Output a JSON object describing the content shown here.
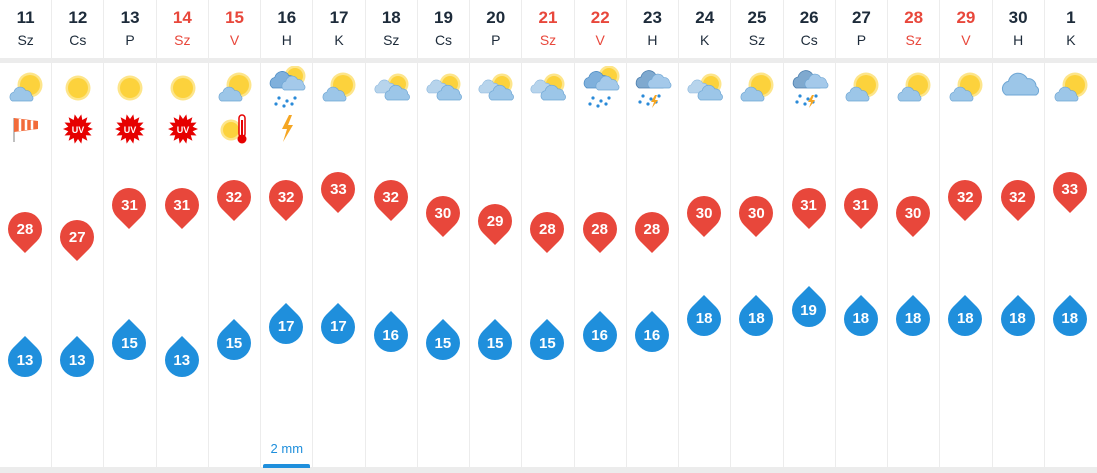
{
  "colors": {
    "max": "#e8473b",
    "min": "#1f8fdc",
    "weekend": "#e8473b",
    "text": "#1d2b3a"
  },
  "days": [
    {
      "date": "11",
      "dow": "Sz",
      "weekend": false,
      "icon": "partly-sunny",
      "extra": "windsock-icon",
      "max": 28,
      "min": 13
    },
    {
      "date": "12",
      "dow": "Cs",
      "weekend": false,
      "icon": "sunny",
      "extra": "uv-icon",
      "extra_text": "UV",
      "max": 27,
      "min": 13
    },
    {
      "date": "13",
      "dow": "P",
      "weekend": false,
      "icon": "sunny",
      "extra": "uv-icon",
      "extra_text": "UV",
      "max": 31,
      "min": 15
    },
    {
      "date": "14",
      "dow": "Sz",
      "weekend": true,
      "icon": "sunny",
      "extra": "uv-icon",
      "extra_text": "UV",
      "max": 31,
      "min": 13
    },
    {
      "date": "15",
      "dow": "V",
      "weekend": true,
      "icon": "partly-sunny",
      "extra": "heat-icon",
      "max": 32,
      "min": 15
    },
    {
      "date": "16",
      "dow": "H",
      "weekend": false,
      "icon": "rain-sun",
      "extra": "lightning-icon",
      "max": 32,
      "min": 17,
      "precip": "2 mm"
    },
    {
      "date": "17",
      "dow": "K",
      "weekend": false,
      "icon": "partly-sunny",
      "max": 33,
      "min": 17
    },
    {
      "date": "18",
      "dow": "Sz",
      "weekend": false,
      "icon": "cloudy-sun",
      "max": 32,
      "min": 16
    },
    {
      "date": "19",
      "dow": "Cs",
      "weekend": false,
      "icon": "cloudy-sun",
      "max": 30,
      "min": 15
    },
    {
      "date": "20",
      "dow": "P",
      "weekend": false,
      "icon": "cloudy-sun",
      "max": 29,
      "min": 15
    },
    {
      "date": "21",
      "dow": "Sz",
      "weekend": true,
      "icon": "cloudy-sun",
      "max": 28,
      "min": 15
    },
    {
      "date": "22",
      "dow": "V",
      "weekend": true,
      "icon": "rain-sun",
      "max": 28,
      "min": 16
    },
    {
      "date": "23",
      "dow": "H",
      "weekend": false,
      "icon": "thunder-rain",
      "max": 28,
      "min": 16
    },
    {
      "date": "24",
      "dow": "K",
      "weekend": false,
      "icon": "cloudy-sun",
      "max": 30,
      "min": 18
    },
    {
      "date": "25",
      "dow": "Sz",
      "weekend": false,
      "icon": "partly-sunny",
      "max": 30,
      "min": 18
    },
    {
      "date": "26",
      "dow": "Cs",
      "weekend": false,
      "icon": "thunder-rain",
      "max": 31,
      "min": 19
    },
    {
      "date": "27",
      "dow": "P",
      "weekend": false,
      "icon": "partly-sunny",
      "max": 31,
      "min": 18
    },
    {
      "date": "28",
      "dow": "Sz",
      "weekend": true,
      "icon": "partly-sunny",
      "max": 30,
      "min": 18
    },
    {
      "date": "29",
      "dow": "V",
      "weekend": true,
      "icon": "partly-sunny",
      "max": 32,
      "min": 18
    },
    {
      "date": "30",
      "dow": "H",
      "weekend": false,
      "icon": "cloud",
      "max": 32,
      "min": 18
    },
    {
      "date": "1",
      "dow": "K",
      "weekend": false,
      "icon": "partly-sunny",
      "max": 33,
      "min": 18
    }
  ]
}
